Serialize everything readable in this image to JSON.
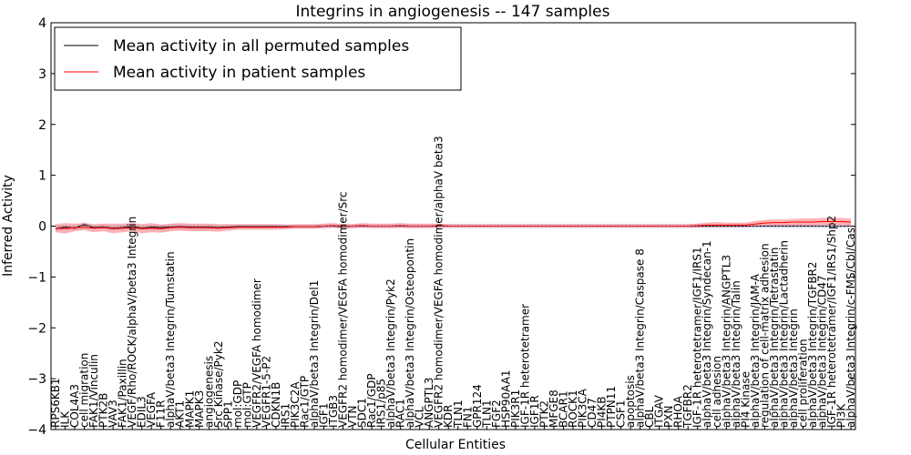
{
  "chart_data": {
    "type": "line",
    "title": "Integrins in angiogenesis -- 147 samples",
    "xlabel": "Cellular Entities",
    "ylabel": "Inferred Activity",
    "ylim": [
      -4,
      4
    ],
    "yticks": [
      "−4",
      "−3",
      "−2",
      "−1",
      "0",
      "1",
      "2",
      "3",
      "4"
    ],
    "legend_position": "top-left",
    "grid": false,
    "categories": [
      "RPS6KB1",
      "ILK",
      "COL4A3",
      "cell migration",
      "FAK1/Vinculin",
      "PTK2B",
      "VAV3",
      "FAK1/Paxillin",
      "VEGF/Rho/ROCK/alphaV/beta3 Integrin",
      "EDIL3",
      "VEGFA",
      "F11R",
      "alphaV/beta3 Integrin/Tumstatin",
      "AKT1",
      "MAPK1",
      "MAPK3",
      "angiogenesis",
      "Src Kinase/Pyk2",
      "SPP1",
      "mol:GDP",
      "mol:GTP",
      "VEGFR2/VEGFA homodimer",
      "VEGFR1-5-P2",
      "CDKN1B",
      "IRS1",
      "PIK3C2A",
      "Rac1/GTP",
      "alphaV/beta3 Integrin/Del1",
      "IGF1",
      "ITGB3",
      "VEGFR2 homodimer/VEGFA homodimer/Src",
      "VTN",
      "SDC1",
      "Rac1/GDP",
      "IRS1/p85",
      "alphaV/beta3 Integrin/Pyk2",
      "RAC1",
      "alphaV/beta3 Integrin/Osteopontin",
      "VCL",
      "ANGPTL3",
      "VEGFR2 homodimer/VEGFA homodimer/alphaV beta3",
      "KDR",
      "TLN1",
      "FN1",
      "GPR124",
      "TLN1",
      "FGF2",
      "HSP90AA1",
      "PIK3R1",
      "IGF-1R heterotetramer",
      "IGF1R",
      "PTK2",
      "MFGE8",
      "BCAR1",
      "ROCK1",
      "PIK3CA",
      "CD47",
      "PI4KB",
      "PTPN11",
      "CSF1",
      "apoptosis",
      "alphaV/beta3 Integrin/Caspase 8",
      "CBL",
      "ITGAV",
      "PXN",
      "RHOA",
      "TGFBR2",
      "IGF-1R heterotetramer/IGF1/IRS1",
      "alphaV/beta3 Integrin/Syndecan-1",
      "cell adhesion",
      "alphaV/beta3 Integrin/ANGPTL3",
      "alphaV/beta3 Integrin/Talin",
      "PI4 Kinase",
      "alphaV/beta3 Integrin/JAM-A",
      "regulation of cell-matrix adhesion",
      "alphaV/beta3 Integrin/Tetrastatin",
      "alphaV/beta3 Integrin/Lactadherin",
      "alphaV/beta3 Integrin",
      "cell proliferation",
      "alphaV/beta3 Integrin/TGFBR2",
      "alphaV/beta3 Integrin/CD47",
      "IGF-1R heterotetramer/IGF1/IRS1/Shp2",
      "PI3K",
      "alphaV/beta3 Integrin/c-FMS/Cbl/Cas"
    ],
    "series": [
      {
        "name": "Mean activity in all permuted samples",
        "color": "#000000",
        "values": [
          -0.05,
          -0.02,
          -0.04,
          0.03,
          -0.03,
          -0.02,
          -0.04,
          -0.03,
          -0.01,
          -0.04,
          -0.02,
          -0.03,
          -0.02,
          -0.01,
          -0.02,
          -0.02,
          -0.02,
          -0.03,
          -0.02,
          -0.01,
          -0.01,
          -0.01,
          -0.01,
          -0.01,
          -0.01,
          -0.01,
          -0.01,
          -0.01,
          0.0,
          0.0,
          -0.01,
          0.0,
          0.0,
          0.0,
          0.0,
          0.0,
          0.0,
          0.0,
          0.0,
          0.0,
          0.0,
          0.0,
          0.0,
          0.0,
          0.0,
          0.0,
          0.0,
          0.0,
          0.0,
          0.0,
          0.0,
          0.0,
          0.0,
          0.0,
          0.0,
          0.0,
          0.0,
          0.0,
          0.0,
          0.0,
          0.0,
          0.0,
          0.0,
          0.0,
          0.0,
          0.0,
          0.0,
          0.0,
          0.0,
          0.0,
          0.0,
          0.0,
          0.0,
          0.0,
          0.0,
          0.0,
          0.0,
          0.0,
          0.0,
          0.0,
          0.0,
          0.0,
          0.0,
          0.0
        ],
        "band_lower": [
          -0.1,
          -0.07,
          -0.08,
          -0.05,
          -0.07,
          -0.07,
          -0.08,
          -0.08,
          -0.06,
          -0.08,
          -0.07,
          -0.08,
          -0.07,
          -0.06,
          -0.07,
          -0.07,
          -0.07,
          -0.07,
          -0.06,
          -0.05,
          -0.05,
          -0.05,
          -0.05,
          -0.05,
          -0.05,
          -0.05,
          -0.05,
          -0.05,
          -0.04,
          -0.04,
          -0.05,
          -0.04,
          -0.04,
          -0.04,
          -0.04,
          -0.04,
          -0.04,
          -0.04,
          -0.04,
          -0.04,
          -0.04,
          -0.04,
          -0.04,
          -0.04,
          -0.04,
          -0.04,
          -0.04,
          -0.04,
          -0.04,
          -0.04,
          -0.04,
          -0.04,
          -0.04,
          -0.04,
          -0.04,
          -0.04,
          -0.04,
          -0.04,
          -0.04,
          -0.04,
          -0.04,
          -0.04,
          -0.04,
          -0.04,
          -0.04,
          -0.04,
          -0.04,
          -0.04,
          -0.04,
          -0.04,
          -0.04,
          -0.04,
          -0.04,
          -0.04,
          -0.04,
          -0.04,
          -0.04,
          -0.04,
          -0.04,
          -0.04,
          -0.04,
          -0.04,
          -0.04,
          -0.04
        ],
        "band_upper": [
          0.0,
          0.03,
          0.0,
          0.08,
          0.01,
          0.03,
          0.0,
          0.02,
          0.04,
          0.0,
          0.03,
          0.02,
          0.03,
          0.04,
          0.03,
          0.03,
          0.03,
          0.01,
          0.02,
          0.03,
          0.03,
          0.03,
          0.03,
          0.03,
          0.03,
          0.03,
          0.03,
          0.03,
          0.04,
          0.04,
          0.03,
          0.04,
          0.04,
          0.04,
          0.04,
          0.04,
          0.04,
          0.04,
          0.04,
          0.04,
          0.04,
          0.04,
          0.04,
          0.04,
          0.04,
          0.04,
          0.04,
          0.04,
          0.04,
          0.04,
          0.04,
          0.04,
          0.04,
          0.04,
          0.04,
          0.04,
          0.04,
          0.04,
          0.04,
          0.04,
          0.04,
          0.04,
          0.04,
          0.04,
          0.04,
          0.04,
          0.04,
          0.04,
          0.04,
          0.04,
          0.04,
          0.04,
          0.04,
          0.04,
          0.04,
          0.04,
          0.04,
          0.04,
          0.04,
          0.04,
          0.04,
          0.04,
          0.04,
          0.04
        ]
      },
      {
        "name": "Mean activity in patient samples",
        "color": "#ff0000",
        "values": [
          -0.04,
          -0.05,
          -0.03,
          -0.02,
          -0.04,
          -0.03,
          -0.05,
          -0.04,
          -0.03,
          -0.05,
          -0.04,
          -0.05,
          -0.03,
          -0.02,
          -0.03,
          -0.03,
          -0.03,
          -0.04,
          -0.03,
          -0.02,
          -0.02,
          -0.02,
          -0.02,
          -0.02,
          -0.02,
          -0.01,
          -0.01,
          -0.01,
          0.0,
          0.01,
          0.0,
          0.0,
          0.01,
          0.0,
          0.0,
          0.0,
          0.01,
          0.0,
          0.0,
          0.0,
          0.01,
          0.0,
          0.0,
          0.0,
          0.0,
          0.0,
          0.0,
          0.0,
          0.0,
          0.0,
          0.0,
          0.0,
          0.0,
          0.0,
          0.0,
          0.0,
          0.0,
          0.0,
          0.0,
          0.0,
          0.0,
          0.0,
          0.0,
          0.0,
          0.0,
          0.0,
          0.0,
          0.01,
          0.02,
          0.02,
          0.02,
          0.02,
          0.02,
          0.04,
          0.06,
          0.07,
          0.07,
          0.08,
          0.08,
          0.08,
          0.09,
          0.09,
          0.09,
          0.08
        ],
        "band_lower": [
          -0.12,
          -0.15,
          -0.1,
          -0.08,
          -0.12,
          -0.1,
          -0.14,
          -0.12,
          -0.1,
          -0.14,
          -0.12,
          -0.13,
          -0.1,
          -0.09,
          -0.1,
          -0.1,
          -0.1,
          -0.11,
          -0.09,
          -0.07,
          -0.07,
          -0.07,
          -0.07,
          -0.07,
          -0.06,
          -0.05,
          -0.05,
          -0.05,
          -0.04,
          -0.03,
          -0.04,
          -0.04,
          -0.03,
          -0.04,
          -0.04,
          -0.04,
          -0.03,
          -0.04,
          -0.04,
          -0.04,
          -0.03,
          -0.03,
          -0.03,
          -0.03,
          -0.03,
          -0.03,
          -0.03,
          -0.03,
          -0.03,
          -0.03,
          -0.03,
          -0.03,
          -0.03,
          -0.03,
          -0.03,
          -0.03,
          -0.03,
          -0.03,
          -0.03,
          -0.03,
          -0.03,
          -0.03,
          -0.03,
          -0.03,
          -0.03,
          -0.03,
          -0.03,
          -0.03,
          -0.02,
          -0.02,
          -0.02,
          -0.02,
          -0.02,
          -0.01,
          0.0,
          0.01,
          0.01,
          0.01,
          0.01,
          0.01,
          0.02,
          0.02,
          0.02,
          0.01
        ],
        "band_upper": [
          0.04,
          0.06,
          0.05,
          0.06,
          0.04,
          0.05,
          0.05,
          0.05,
          0.06,
          0.04,
          0.06,
          0.03,
          0.05,
          0.06,
          0.05,
          0.05,
          0.05,
          0.04,
          0.04,
          0.04,
          0.04,
          0.04,
          0.04,
          0.04,
          0.03,
          0.04,
          0.04,
          0.04,
          0.05,
          0.06,
          0.04,
          0.04,
          0.06,
          0.05,
          0.05,
          0.05,
          0.06,
          0.05,
          0.05,
          0.05,
          0.05,
          0.04,
          0.04,
          0.04,
          0.04,
          0.04,
          0.04,
          0.04,
          0.04,
          0.04,
          0.04,
          0.04,
          0.04,
          0.04,
          0.04,
          0.04,
          0.04,
          0.04,
          0.04,
          0.04,
          0.04,
          0.04,
          0.04,
          0.04,
          0.04,
          0.04,
          0.04,
          0.05,
          0.07,
          0.08,
          0.07,
          0.07,
          0.07,
          0.1,
          0.12,
          0.13,
          0.13,
          0.14,
          0.15,
          0.15,
          0.16,
          0.16,
          0.16,
          0.15
        ]
      }
    ]
  }
}
